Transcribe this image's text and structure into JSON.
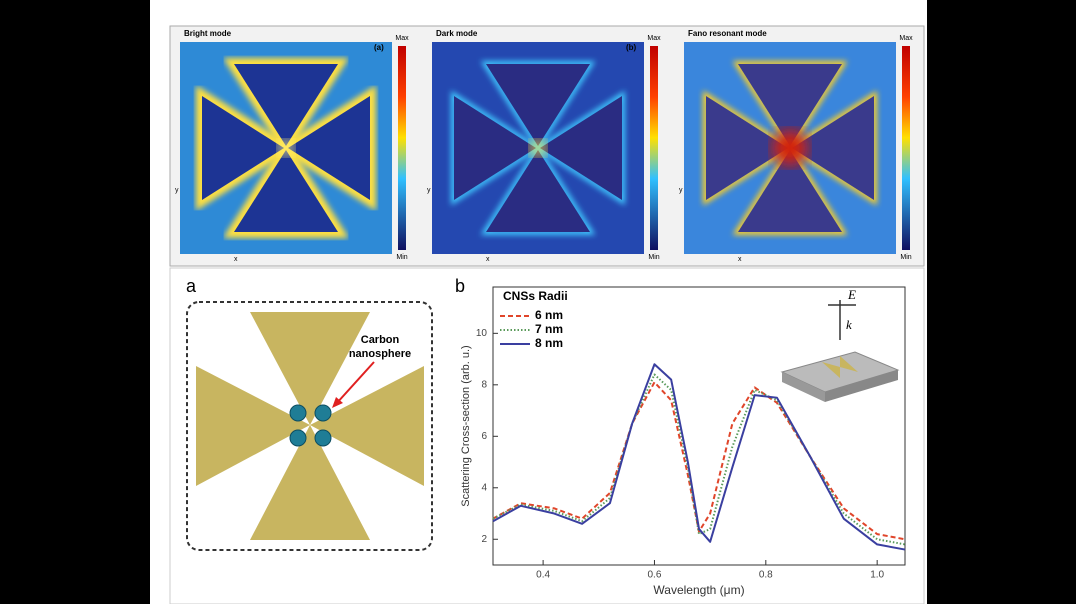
{
  "maps": [
    {
      "title": "Bright mode",
      "tag": "(a)",
      "max": "Max",
      "min": "Min",
      "y_axis": "y",
      "x_axis": "x"
    },
    {
      "title": "Dark mode",
      "tag": "(b)",
      "max": "Max",
      "min": "Min",
      "y_axis": "y",
      "x_axis": "x"
    },
    {
      "title": "Fano resonant mode",
      "max": "Max",
      "min": "Min",
      "y_axis": "y",
      "x_axis": "x"
    }
  ],
  "schematic": {
    "label": "a",
    "annotation": [
      "Carbon",
      "nanosphere"
    ]
  },
  "chart_data": {
    "type": "line",
    "panel_label": "b",
    "legend_title": "CNSs Radii",
    "inset": {
      "field": "E",
      "wave": "k"
    },
    "x_label": "Wavelength (μm)",
    "y_label": "Scattering Cross-section (arb. u.)",
    "x": [
      0.31,
      0.36,
      0.42,
      0.47,
      0.52,
      0.56,
      0.6,
      0.63,
      0.66,
      0.68,
      0.7,
      0.74,
      0.78,
      0.82,
      0.88,
      0.94,
      1.0,
      1.05
    ],
    "series": [
      {
        "name": "6 nm",
        "color": "#e0452a",
        "dash": "5,3",
        "values": [
          2.8,
          3.4,
          3.2,
          2.8,
          3.8,
          6.5,
          8.1,
          7.4,
          4.5,
          2.3,
          3.0,
          6.5,
          7.9,
          7.3,
          5.2,
          3.2,
          2.2,
          2.0
        ]
      },
      {
        "name": "7 nm",
        "color": "#5a9a5a",
        "dash": "1.5,2",
        "values": [
          2.8,
          3.35,
          3.1,
          2.7,
          3.6,
          6.5,
          8.4,
          7.8,
          4.8,
          2.2,
          2.4,
          5.6,
          7.8,
          7.4,
          5.2,
          3.0,
          2.0,
          1.8
        ]
      },
      {
        "name": "8 nm",
        "color": "#3a3fa0",
        "dash": "",
        "values": [
          2.7,
          3.3,
          3.0,
          2.6,
          3.4,
          6.5,
          8.8,
          8.2,
          5.0,
          2.4,
          1.9,
          4.8,
          7.6,
          7.5,
          5.2,
          2.8,
          1.8,
          1.6
        ]
      }
    ],
    "xlim": [
      0.31,
      1.05
    ],
    "ylim": [
      1,
      11.8
    ],
    "xticks": [
      0.4,
      0.6,
      0.8,
      {
        "value": 1,
        "label": "1.0"
      }
    ],
    "yticks": [
      2,
      4,
      6,
      8,
      10
    ]
  }
}
